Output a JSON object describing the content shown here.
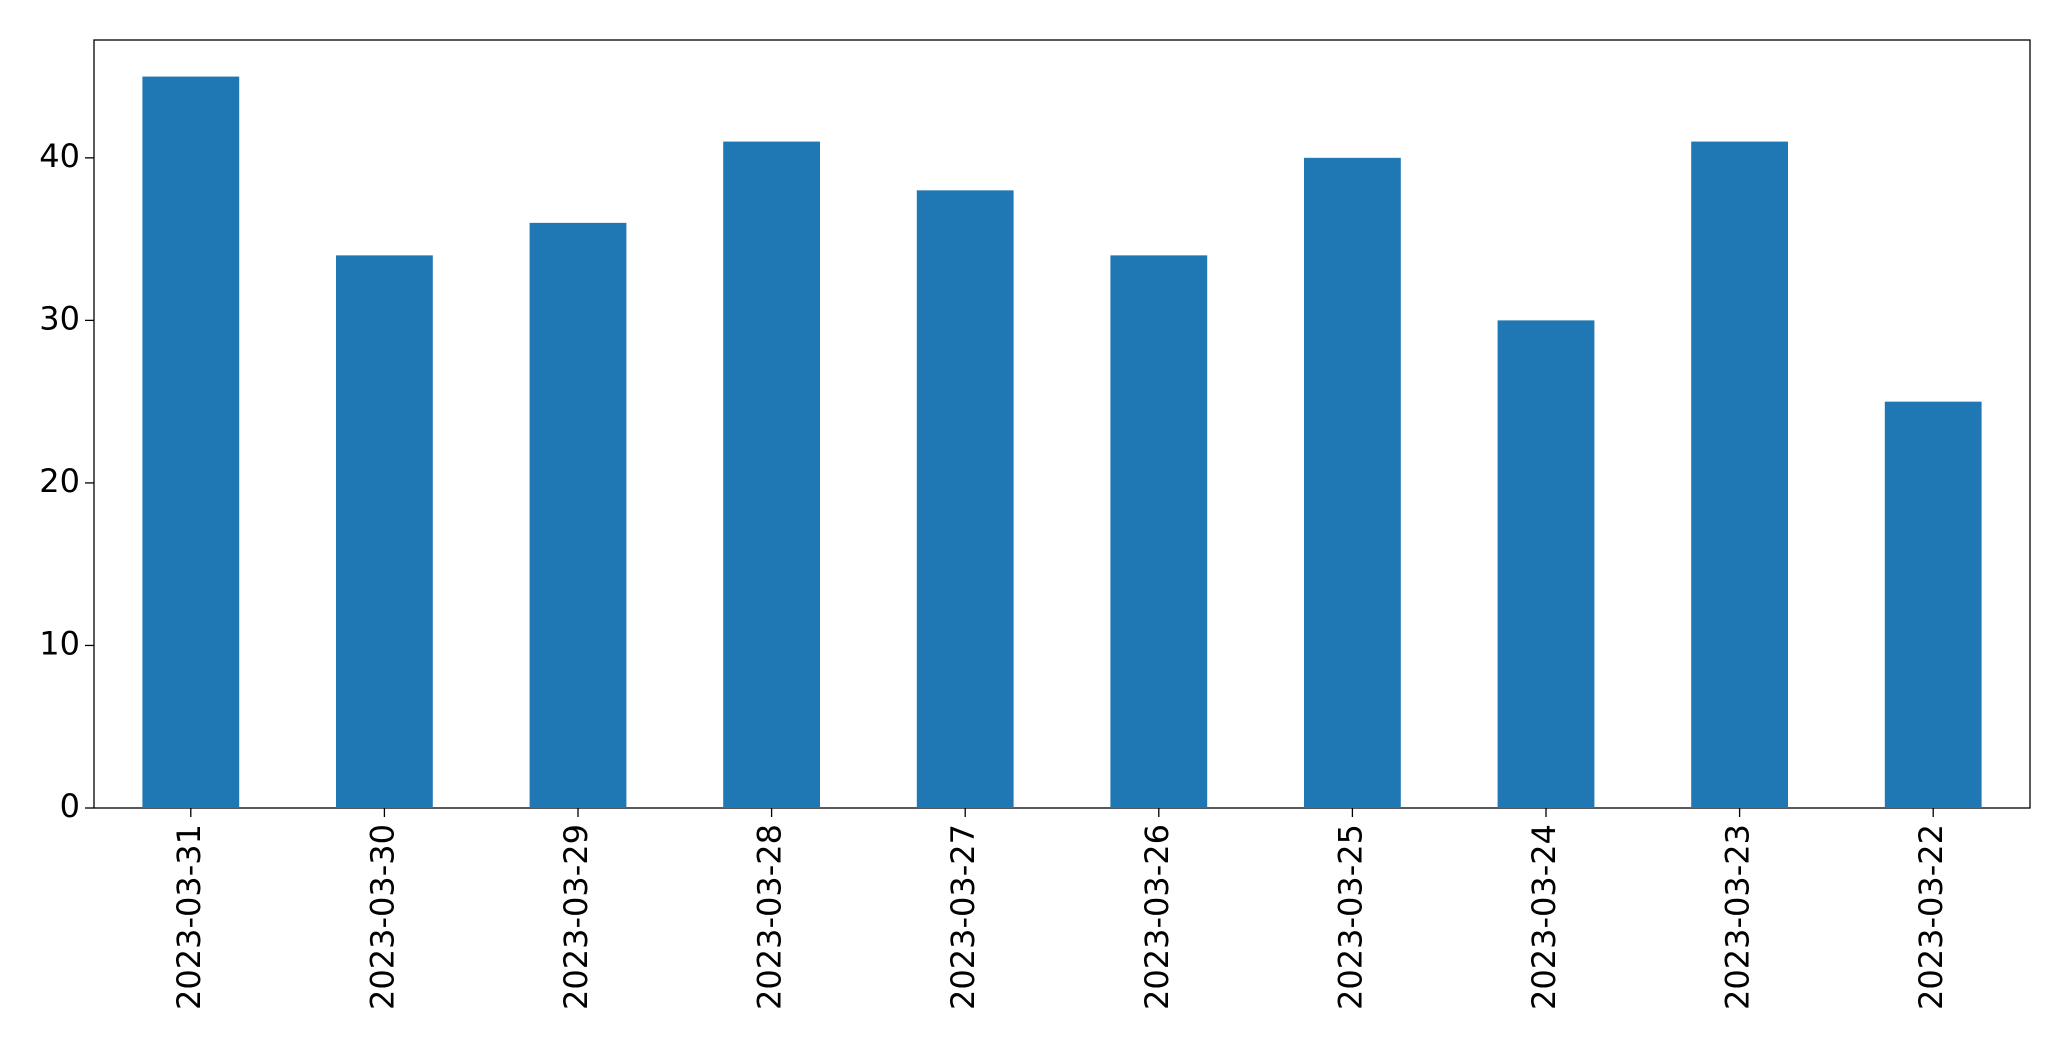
{
  "chart_data": {
    "type": "bar",
    "categories": [
      "2023-03-31",
      "2023-03-30",
      "2023-03-29",
      "2023-03-28",
      "2023-03-27",
      "2023-03-26",
      "2023-03-25",
      "2023-03-24",
      "2023-03-23",
      "2023-03-22"
    ],
    "values": [
      45,
      34,
      36,
      41,
      38,
      34,
      40,
      30,
      41,
      25
    ],
    "color": "#1f77b4",
    "ylim": [
      0,
      47.25
    ],
    "yticks": [
      0,
      10,
      20,
      30,
      40
    ],
    "grid": false
  }
}
